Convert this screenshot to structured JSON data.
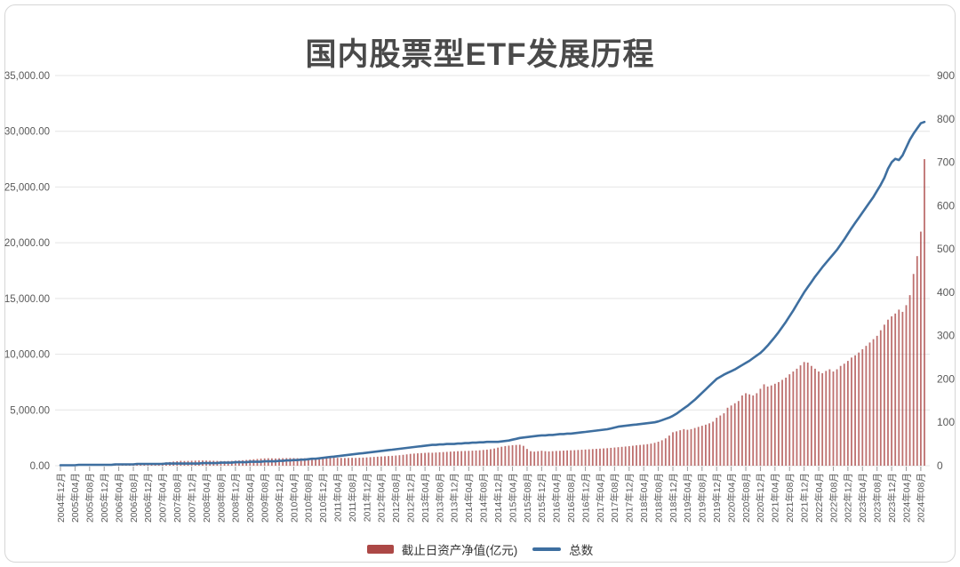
{
  "header": {
    "title": "国内股票型ETF发展历程"
  },
  "legend": {
    "bar_label": "截止日资产净值(亿元)",
    "line_label": "总数"
  },
  "chart_data": {
    "type": "combo-bar-line",
    "title": "国内股票型ETF发展历程",
    "x_unit": "month",
    "months_per_tick": 4,
    "grid": "horizontal",
    "legend_position": "bottom",
    "x_tick_labels": [
      "2004年12月",
      "2005年04月",
      "2005年08月",
      "2005年12月",
      "2006年04月",
      "2006年08月",
      "2006年12月",
      "2007年04月",
      "2007年08月",
      "2007年12月",
      "2008年04月",
      "2008年08月",
      "2008年12月",
      "2009年04月",
      "2009年08月",
      "2009年12月",
      "2010年04月",
      "2010年08月",
      "2010年12月",
      "2011年04月",
      "2011年08月",
      "2011年12月",
      "2012年04月",
      "2012年08月",
      "2012年12月",
      "2013年04月",
      "2013年08月",
      "2013年12月",
      "2014年04月",
      "2014年08月",
      "2014年12月",
      "2015年04月",
      "2015年08月",
      "2015年12月",
      "2016年04月",
      "2016年08月",
      "2016年12月",
      "2017年04月",
      "2017年08月",
      "2017年12月",
      "2018年04月",
      "2018年08月",
      "2018年12月",
      "2019年04月",
      "2019年08月",
      "2019年12月",
      "2020年04月",
      "2020年08月",
      "2020年12月",
      "2021年04月",
      "2021年08月",
      "2021年12月",
      "2022年04月",
      "2022年08月",
      "2022年12月",
      "2023年04月",
      "2023年08月",
      "2023年12月",
      "2024年04月",
      "2024年08月"
    ],
    "left_axis": {
      "min": 0,
      "max": 35000,
      "step": 5000,
      "tick_labels": [
        "35,000.00",
        "30,000.00",
        "25,000.00",
        "20,000.00",
        "15,000.00",
        "10,000.00",
        "5,000.00",
        "0.00"
      ]
    },
    "right_axis": {
      "min": 0,
      "max": 900,
      "step": 100,
      "tick_labels": [
        "900",
        "800",
        "700",
        "600",
        "500",
        "400",
        "300",
        "200",
        "100",
        "0"
      ]
    },
    "series": [
      {
        "name": "截止日资产净值(亿元)",
        "type": "bar",
        "axis": "left",
        "color": "#AC4846",
        "values": [
          54,
          50,
          52,
          54,
          56,
          54,
          56,
          58,
          60,
          58,
          60,
          62,
          65,
          68,
          72,
          76,
          82,
          88,
          95,
          103,
          112,
          122,
          135,
          150,
          168,
          185,
          205,
          230,
          260,
          295,
          330,
          370,
          405,
          435,
          420,
          430,
          445,
          455,
          465,
          470,
          460,
          450,
          440,
          430,
          420,
          415,
          425,
          435,
          455,
          470,
          490,
          515,
          545,
          575,
          605,
          635,
          655,
          670,
          660,
          650,
          665,
          672,
          680,
          688,
          678,
          668,
          660,
          668,
          678,
          688,
          698,
          708,
          718,
          726,
          718,
          710,
          702,
          694,
          686,
          694,
          704,
          696,
          712,
          722,
          740,
          765,
          785,
          805,
          825,
          845,
          865,
          885,
          912,
          940,
          975,
          1015,
          1060,
          1085,
          1110,
          1130,
          1150,
          1170,
          1160,
          1180,
          1200,
          1220,
          1240,
          1260,
          1280,
          1300,
          1310,
          1320,
          1330,
          1345,
          1360,
          1380,
          1410,
          1440,
          1480,
          1540,
          1620,
          1700,
          1760,
          1800,
          1840,
          1860,
          1880,
          1780,
          1500,
          1300,
          1260,
          1300,
          1340,
          1300,
          1280,
          1300,
          1320,
          1330,
          1350,
          1370,
          1380,
          1390,
          1410,
          1430,
          1450,
          1470,
          1490,
          1510,
          1530,
          1550,
          1570,
          1600,
          1630,
          1660,
          1690,
          1720,
          1750,
          1790,
          1830,
          1860,
          1890,
          1930,
          1980,
          2050,
          2150,
          2280,
          2450,
          2700,
          3000,
          3080,
          3180,
          3280,
          3220,
          3280,
          3380,
          3480,
          3580,
          3680,
          3800,
          3950,
          4300,
          4500,
          4700,
          5200,
          5400,
          5600,
          5800,
          6300,
          6500,
          6400,
          6300,
          6500,
          6900,
          7300,
          7100,
          7200,
          7350,
          7500,
          7700,
          7900,
          8200,
          8450,
          8700,
          9000,
          9300,
          9250,
          8950,
          8700,
          8450,
          8300,
          8500,
          8650,
          8450,
          8650,
          8950,
          9150,
          9400,
          9700,
          9900,
          10150,
          10450,
          10750,
          11050,
          11350,
          11650,
          12150,
          12650,
          13100,
          13400,
          13650,
          14000,
          13800,
          14400,
          15300,
          17200,
          18800,
          21000,
          27500
        ]
      },
      {
        "name": "总数",
        "type": "line",
        "axis": "right",
        "color": "#3E6FA0",
        "values": [
          1,
          1,
          1,
          1,
          1,
          2,
          2,
          2,
          2,
          2,
          2,
          2,
          2,
          2,
          2,
          3,
          3,
          3,
          3,
          3,
          3,
          4,
          4,
          4,
          4,
          4,
          4,
          4,
          4,
          5,
          5,
          5,
          5,
          5,
          5,
          5,
          5,
          5,
          5,
          6,
          6,
          6,
          6,
          6,
          7,
          7,
          7,
          7,
          8,
          8,
          8,
          8,
          9,
          9,
          9,
          9,
          10,
          10,
          10,
          10,
          11,
          11,
          12,
          12,
          13,
          13,
          14,
          14,
          15,
          16,
          16,
          17,
          18,
          19,
          20,
          21,
          22,
          23,
          24,
          25,
          26,
          27,
          28,
          29,
          30,
          31,
          32,
          33,
          34,
          35,
          36,
          37,
          38,
          39,
          40,
          41,
          42,
          43,
          44,
          45,
          46,
          47,
          48,
          48,
          49,
          49,
          50,
          50,
          50,
          51,
          51,
          52,
          52,
          53,
          53,
          54,
          54,
          55,
          55,
          55,
          55,
          56,
          57,
          58,
          60,
          62,
          64,
          65,
          66,
          67,
          68,
          69,
          70,
          70,
          71,
          71,
          72,
          73,
          73,
          74,
          74,
          75,
          76,
          77,
          78,
          79,
          80,
          81,
          82,
          83,
          84,
          86,
          88,
          90,
          91,
          92,
          93,
          94,
          95,
          96,
          97,
          98,
          99,
          100,
          102,
          105,
          108,
          111,
          115,
          120,
          126,
          132,
          138,
          145,
          152,
          160,
          168,
          176,
          184,
          192,
          200,
          205,
          210,
          214,
          218,
          222,
          227,
          232,
          237,
          242,
          248,
          254,
          260,
          268,
          277,
          287,
          297,
          308,
          320,
          332,
          345,
          358,
          372,
          386,
          400,
          412,
          424,
          436,
          447,
          458,
          468,
          478,
          488,
          498,
          510,
          522,
          535,
          548,
          560,
          572,
          584,
          596,
          608,
          620,
          634,
          648,
          664,
          685,
          700,
          708,
          705,
          716,
          734,
          752,
          766,
          778,
          790,
          793
        ]
      }
    ]
  }
}
